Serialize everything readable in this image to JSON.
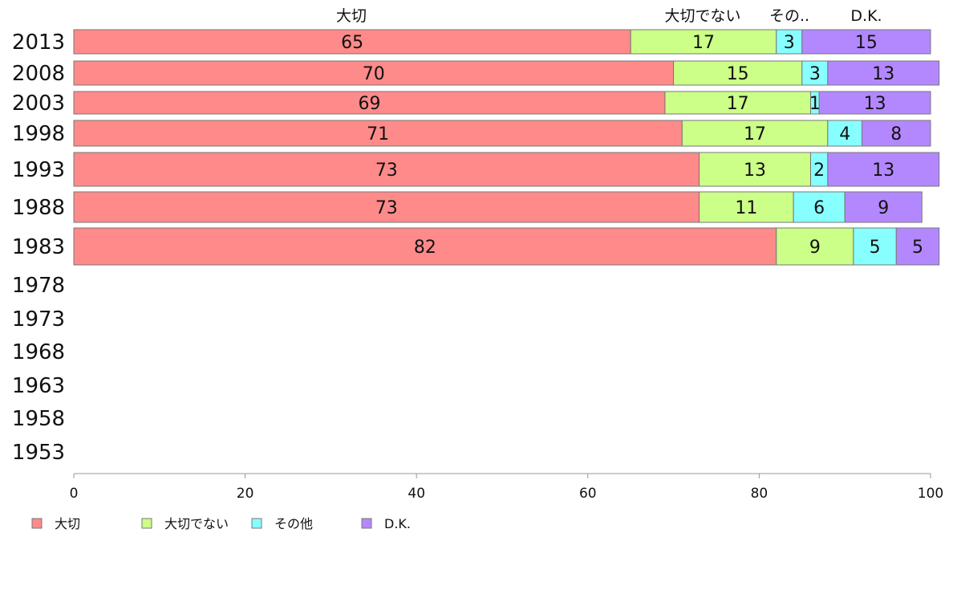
{
  "colors": {
    "important": "#ff8a8a",
    "not_important": "#ccff88",
    "other": "#88ffff",
    "dk": "#b388ff",
    "axis": "#999999",
    "bar_stroke": "#777777"
  },
  "chart_data": {
    "type": "bar",
    "orientation": "horizontal",
    "stacked": true,
    "xlim": [
      0,
      100
    ],
    "x_ticks": [
      0,
      20,
      40,
      60,
      80,
      100
    ],
    "grid": false,
    "legend_position": "bottom-left",
    "categories": [
      "2013",
      "2008",
      "2003",
      "1998",
      "1993",
      "1988",
      "1983",
      "1978",
      "1973",
      "1968",
      "1963",
      "1958",
      "1953"
    ],
    "column_headers": [
      "大切",
      "大切でない",
      "その..",
      "D.K."
    ],
    "series": [
      {
        "name": "大切",
        "color_key": "important",
        "values": [
          65,
          70,
          69,
          71,
          73,
          73,
          82,
          null,
          null,
          null,
          null,
          null,
          null
        ]
      },
      {
        "name": "大切でない",
        "color_key": "not_important",
        "values": [
          17,
          15,
          17,
          17,
          13,
          11,
          9,
          null,
          null,
          null,
          null,
          null,
          null
        ]
      },
      {
        "name": "その他",
        "color_key": "other",
        "values": [
          3,
          3,
          1,
          4,
          2,
          6,
          5,
          null,
          null,
          null,
          null,
          null,
          null
        ]
      },
      {
        "name": "D.K.",
        "color_key": "dk",
        "values": [
          15,
          13,
          13,
          8,
          13,
          9,
          5,
          null,
          null,
          null,
          null,
          null,
          null
        ]
      }
    ]
  }
}
